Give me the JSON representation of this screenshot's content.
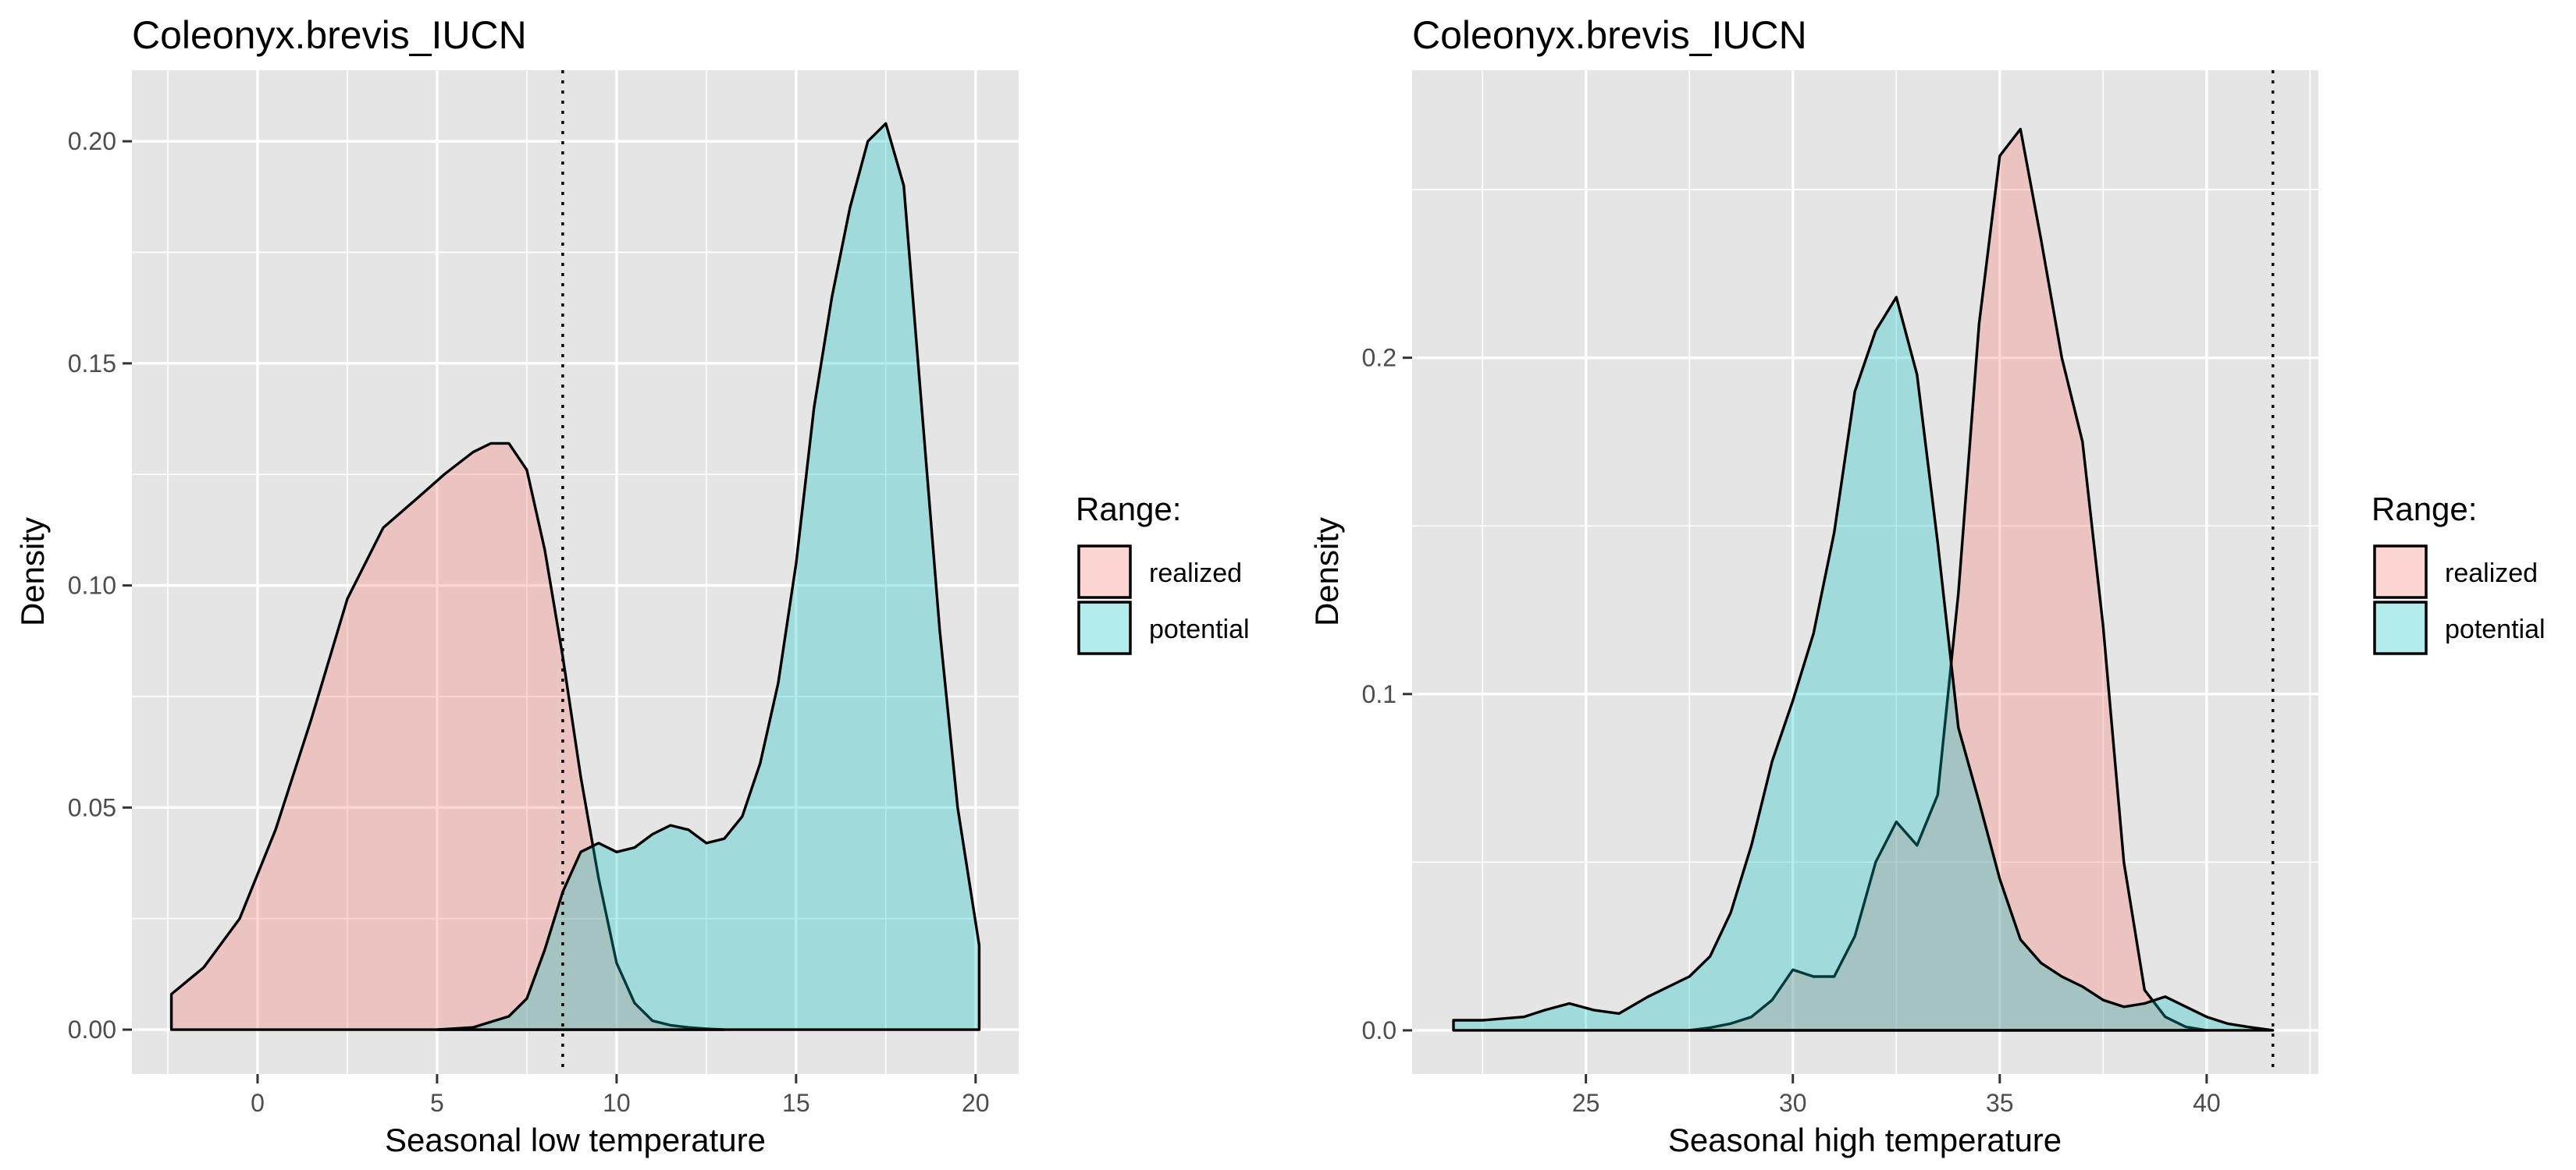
{
  "colors": {
    "panel_background": "#e5e5e5",
    "grid": "#ffffff",
    "realized": "#F8766D",
    "potential": "#00BFC4",
    "outline": "#000000"
  },
  "chart_data": [
    {
      "type": "area",
      "subtype": "density",
      "title": "Coleonyx.brevis_IUCN",
      "xlabel": "Seasonal low temperature",
      "ylabel": "Density",
      "xlim": [
        -3.5,
        21.2
      ],
      "ylim": [
        -0.01,
        0.216
      ],
      "x_ticks": [
        0,
        5,
        10,
        15,
        20
      ],
      "x_tick_labels": [
        "0",
        "5",
        "10",
        "15",
        "20"
      ],
      "y_ticks": [
        0.0,
        0.05,
        0.1,
        0.15,
        0.2
      ],
      "y_tick_labels": [
        "0.00",
        "0.05",
        "0.10",
        "0.15",
        "0.20"
      ],
      "grid": true,
      "vline": {
        "x": 8.5,
        "style": "dotted"
      },
      "legend": {
        "title": "Range:",
        "position": "right",
        "entries": [
          "realized",
          "potential"
        ]
      },
      "series": [
        {
          "name": "realized",
          "x": [
            -2.4,
            -2.4,
            -1.5,
            -0.5,
            0.5,
            1.5,
            2.5,
            3.5,
            4.5,
            5.2,
            6.0,
            6.5,
            7.0,
            7.5,
            8.0,
            8.5,
            9.0,
            9.5,
            10.0,
            10.5,
            11.0,
            11.5,
            12.0,
            12.5,
            13.0
          ],
          "y": [
            0.0,
            0.008,
            0.014,
            0.025,
            0.045,
            0.07,
            0.097,
            0.113,
            0.12,
            0.125,
            0.13,
            0.132,
            0.132,
            0.126,
            0.108,
            0.084,
            0.057,
            0.034,
            0.015,
            0.006,
            0.002,
            0.001,
            0.0005,
            0.0002,
            0.0
          ]
        },
        {
          "name": "potential",
          "x": [
            5.0,
            6.0,
            7.0,
            7.5,
            8.0,
            8.5,
            9.0,
            9.5,
            10.0,
            10.5,
            11.0,
            11.5,
            12.0,
            12.5,
            13.0,
            13.5,
            14.0,
            14.5,
            15.0,
            15.5,
            16.0,
            16.5,
            17.0,
            17.5,
            18.0,
            18.5,
            19.0,
            19.5,
            20.1,
            20.1
          ],
          "y": [
            0.0,
            0.0005,
            0.003,
            0.007,
            0.018,
            0.031,
            0.04,
            0.042,
            0.04,
            0.041,
            0.044,
            0.046,
            0.045,
            0.042,
            0.043,
            0.048,
            0.06,
            0.078,
            0.105,
            0.14,
            0.165,
            0.185,
            0.2,
            0.204,
            0.19,
            0.14,
            0.09,
            0.05,
            0.019,
            0.0
          ]
        }
      ]
    },
    {
      "type": "area",
      "subtype": "density",
      "title": "Coleonyx.brevis_IUCN",
      "xlabel": "Seasonal high temperature",
      "ylabel": "Density",
      "xlim": [
        20.8,
        42.7
      ],
      "ylim": [
        -0.013,
        0.2855
      ],
      "x_ticks": [
        25,
        30,
        35,
        40
      ],
      "x_tick_labels": [
        "25",
        "30",
        "35",
        "40"
      ],
      "y_ticks": [
        0.0,
        0.1,
        0.2
      ],
      "y_tick_labels": [
        "0.0",
        "0.1",
        "0.2"
      ],
      "grid": true,
      "vline": {
        "x": 41.6,
        "style": "dotted"
      },
      "legend": {
        "title": "Range:",
        "position": "right",
        "entries": [
          "realized",
          "potential"
        ]
      },
      "series": [
        {
          "name": "realized",
          "x": [
            27.5,
            28.0,
            28.5,
            29.0,
            29.5,
            30.0,
            30.5,
            31.0,
            31.5,
            32.0,
            32.5,
            33.0,
            33.5,
            34.0,
            34.5,
            35.0,
            35.5,
            36.0,
            36.5,
            37.0,
            37.5,
            38.0,
            38.5,
            39.0,
            39.5,
            40.0
          ],
          "y": [
            0.0,
            0.0008,
            0.002,
            0.004,
            0.009,
            0.018,
            0.016,
            0.016,
            0.028,
            0.05,
            0.062,
            0.055,
            0.07,
            0.13,
            0.21,
            0.26,
            0.268,
            0.235,
            0.2,
            0.175,
            0.12,
            0.05,
            0.012,
            0.004,
            0.001,
            0.0
          ]
        },
        {
          "name": "potential",
          "x": [
            21.8,
            21.8,
            22.5,
            23.5,
            24.0,
            24.6,
            25.2,
            25.8,
            26.5,
            27.0,
            27.5,
            28.0,
            28.5,
            29.0,
            29.5,
            30.0,
            30.5,
            31.0,
            31.5,
            32.0,
            32.5,
            33.0,
            33.5,
            34.0,
            34.5,
            35.0,
            35.5,
            36.0,
            36.5,
            37.0,
            37.5,
            38.0,
            38.5,
            39.0,
            39.5,
            40.0,
            40.5,
            41.0,
            41.6
          ],
          "y": [
            0.0,
            0.003,
            0.003,
            0.004,
            0.006,
            0.008,
            0.006,
            0.005,
            0.01,
            0.013,
            0.016,
            0.022,
            0.035,
            0.055,
            0.08,
            0.098,
            0.118,
            0.148,
            0.19,
            0.208,
            0.218,
            0.195,
            0.145,
            0.09,
            0.068,
            0.045,
            0.027,
            0.02,
            0.016,
            0.013,
            0.009,
            0.007,
            0.008,
            0.01,
            0.007,
            0.004,
            0.002,
            0.001,
            0.0
          ]
        }
      ]
    }
  ]
}
